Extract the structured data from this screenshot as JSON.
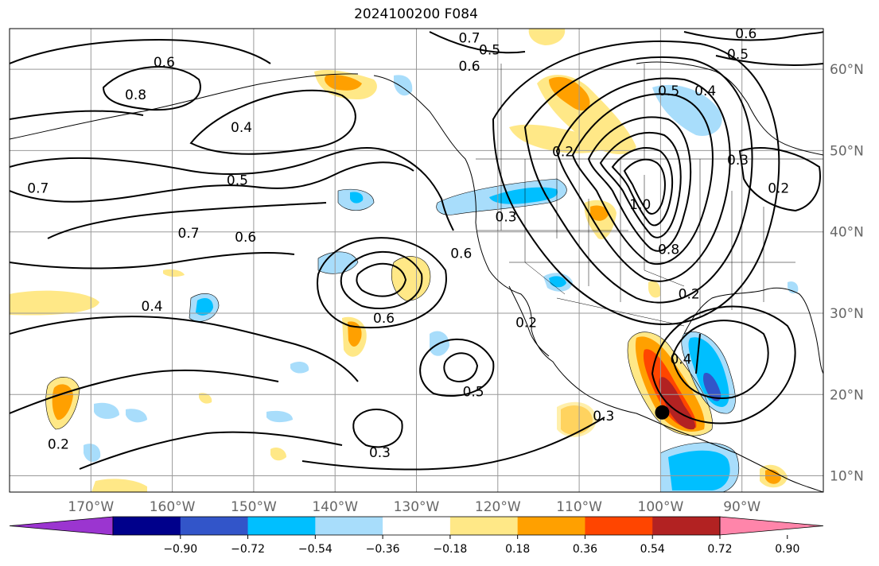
{
  "title": "2024100200 F084",
  "map": {
    "lon_range": [
      -180,
      -80
    ],
    "lat_range": [
      8,
      65
    ],
    "lat_ticks": [
      {
        "value": 10,
        "label": "10°N"
      },
      {
        "value": 20,
        "label": "20°N"
      },
      {
        "value": 30,
        "label": "30°N"
      },
      {
        "value": 40,
        "label": "40°N"
      },
      {
        "value": 50,
        "label": "50°N"
      },
      {
        "value": 60,
        "label": "60°N"
      }
    ],
    "lon_ticks": [
      {
        "value": -170,
        "label": "170°W"
      },
      {
        "value": -160,
        "label": "160°W"
      },
      {
        "value": -150,
        "label": "150°W"
      },
      {
        "value": -140,
        "label": "140°W"
      },
      {
        "value": -130,
        "label": "130°W"
      },
      {
        "value": -120,
        "label": "120°W"
      },
      {
        "value": -110,
        "label": "110°W"
      },
      {
        "value": -100,
        "label": "100°W"
      },
      {
        "value": -90,
        "label": "90°W"
      }
    ],
    "grid": true,
    "contour_labels": [
      {
        "text": "0.7",
        "lon": -123.5,
        "lat": 63.5
      },
      {
        "text": "0.6",
        "lon": -123.5,
        "lat": 60.0
      },
      {
        "text": "0.6",
        "lon": -89.5,
        "lat": 64.0
      },
      {
        "text": "0.5",
        "lon": -90.5,
        "lat": 61.5
      },
      {
        "text": "0.5",
        "lon": -121.0,
        "lat": 62.0
      },
      {
        "text": "0.8",
        "lon": -164.5,
        "lat": 56.5
      },
      {
        "text": "0.6",
        "lon": -161.0,
        "lat": 60.5
      },
      {
        "text": "0.4",
        "lon": -151.5,
        "lat": 52.5
      },
      {
        "text": "0.5",
        "lon": -152.0,
        "lat": 46.0
      },
      {
        "text": "0.7",
        "lon": -158.0,
        "lat": 39.5
      },
      {
        "text": "0.6",
        "lon": -151.0,
        "lat": 39.0
      },
      {
        "text": "0.7",
        "lon": -176.5,
        "lat": 45.0
      },
      {
        "text": "0.4",
        "lon": -162.5,
        "lat": 30.5
      },
      {
        "text": "0.6",
        "lon": -124.5,
        "lat": 37.0
      },
      {
        "text": "0.3",
        "lon": -119.0,
        "lat": 41.5
      },
      {
        "text": "0.2",
        "lon": -112.0,
        "lat": 49.5
      },
      {
        "text": "0.5",
        "lon": -99.0,
        "lat": 57.0
      },
      {
        "text": "0.4",
        "lon": -94.5,
        "lat": 57.0
      },
      {
        "text": "1.0",
        "lon": -102.5,
        "lat": 43.0
      },
      {
        "text": "0.8",
        "lon": -99.0,
        "lat": 37.5
      },
      {
        "text": "0.3",
        "lon": -90.5,
        "lat": 48.5
      },
      {
        "text": "0.2",
        "lon": -85.5,
        "lat": 45.0
      },
      {
        "text": "0.2",
        "lon": -96.5,
        "lat": 32.0
      },
      {
        "text": "0.2",
        "lon": -116.5,
        "lat": 28.5
      },
      {
        "text": "0.6",
        "lon": -134.0,
        "lat": 29.0
      },
      {
        "text": "0.5",
        "lon": -123.0,
        "lat": 20.0
      },
      {
        "text": "0.3",
        "lon": -134.5,
        "lat": 12.5
      },
      {
        "text": "0.3",
        "lon": -107.0,
        "lat": 17.0
      },
      {
        "text": "0.2",
        "lon": -174.0,
        "lat": 13.5
      },
      {
        "text": "0.4",
        "lon": -97.5,
        "lat": 24.0
      }
    ],
    "storm_marker": {
      "lon": -99.8,
      "lat": 17.8
    }
  },
  "colorbar": {
    "levels": [
      "−0.90",
      "−0.72",
      "−0.54",
      "−0.36",
      "−0.18",
      "0.18",
      "0.36",
      "0.54",
      "0.72",
      "0.90"
    ],
    "colors": [
      "#9b35d0",
      "#00008b",
      "#3255c9",
      "#00bfff",
      "#a8ddfb",
      "#ffffff",
      "#ffe887",
      "#ffa000",
      "#ff4500",
      "#b22222",
      "#ff85aa"
    ],
    "extend": "both"
  },
  "shading_colors": {
    "light_blue": "#a8ddfb",
    "blue": "#00bfff",
    "med_blue": "#3255c9",
    "yellow": "#ffe887",
    "orange": "#ffa000",
    "red_orange": "#ff4500",
    "dark_red": "#b22222"
  }
}
